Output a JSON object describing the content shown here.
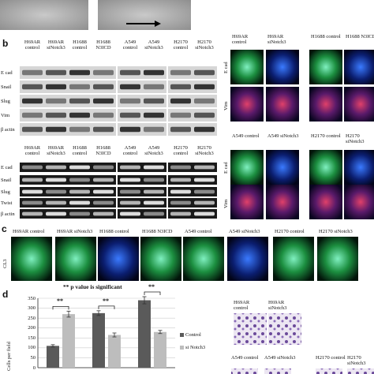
{
  "panel_labels": [
    "b",
    "c",
    "d"
  ],
  "western_blot": {
    "headers": [
      "H69AR control",
      "H69AR siNotch3",
      "H1688 control",
      "H1688 N3ICD",
      "A549 control",
      "A549 siNotch3",
      "H2170 control",
      "H2170 siNotch3"
    ],
    "rows": [
      "E cad",
      "Snail",
      "Slug",
      "Vim",
      "β actin"
    ]
  },
  "rt_pcr": {
    "headers": [
      "H69AR control",
      "H69AR siNotch3",
      "H1688 control",
      "H1688 N3ICD",
      "A549 control",
      "A549 siNotch3",
      "H2170 control",
      "H2170 siNotch3"
    ],
    "rows": [
      "E cad",
      "Snail",
      "Slug",
      "Twist",
      "β actin"
    ]
  },
  "if_top": {
    "headers": [
      "H69AR control",
      "H69AR siNotch3",
      "H1688 control",
      "H1688 N3ICD"
    ],
    "rows": [
      "E cad",
      "Vim"
    ]
  },
  "if_bottom": {
    "headers": [
      "A549 control",
      "A549 siNotch3",
      "H2170 control",
      "H2170 siNotch3"
    ],
    "rows": [
      "E cad",
      "Vim"
    ]
  },
  "panel_c": {
    "headers": [
      "H69AR control",
      "H69AR siNotch3",
      "H1688 control",
      "H1688 N3ICD",
      "A549 control",
      "A549 siNotch3",
      "H2170 control",
      "H2170 siNotch3"
    ],
    "row": "CL3"
  },
  "invasion": {
    "labels": [
      "H69AR control",
      "H69AR siNotch3",
      "A549 control",
      "A549 siNotch3",
      "H2170 control",
      "H2170 siNotch3"
    ]
  },
  "chart_data": {
    "type": "bar",
    "title": "** p value is significant",
    "y_label": "Cells per field",
    "categories": [
      null,
      null,
      null
    ],
    "series": [
      {
        "name": "Control",
        "color": "#5a5a5a",
        "values": [
          110,
          275,
          340
        ],
        "errors": [
          6,
          12,
          18
        ]
      },
      {
        "name": "si Notch3",
        "color": "#bdbdbd",
        "values": [
          270,
          165,
          180
        ],
        "errors": [
          15,
          10,
          8
        ]
      }
    ],
    "annotations": [
      "**",
      "**",
      "**"
    ],
    "ylim": [
      0,
      350
    ],
    "yticks": [
      0,
      50,
      100,
      150,
      200,
      250,
      300,
      350
    ],
    "legend": "right"
  }
}
